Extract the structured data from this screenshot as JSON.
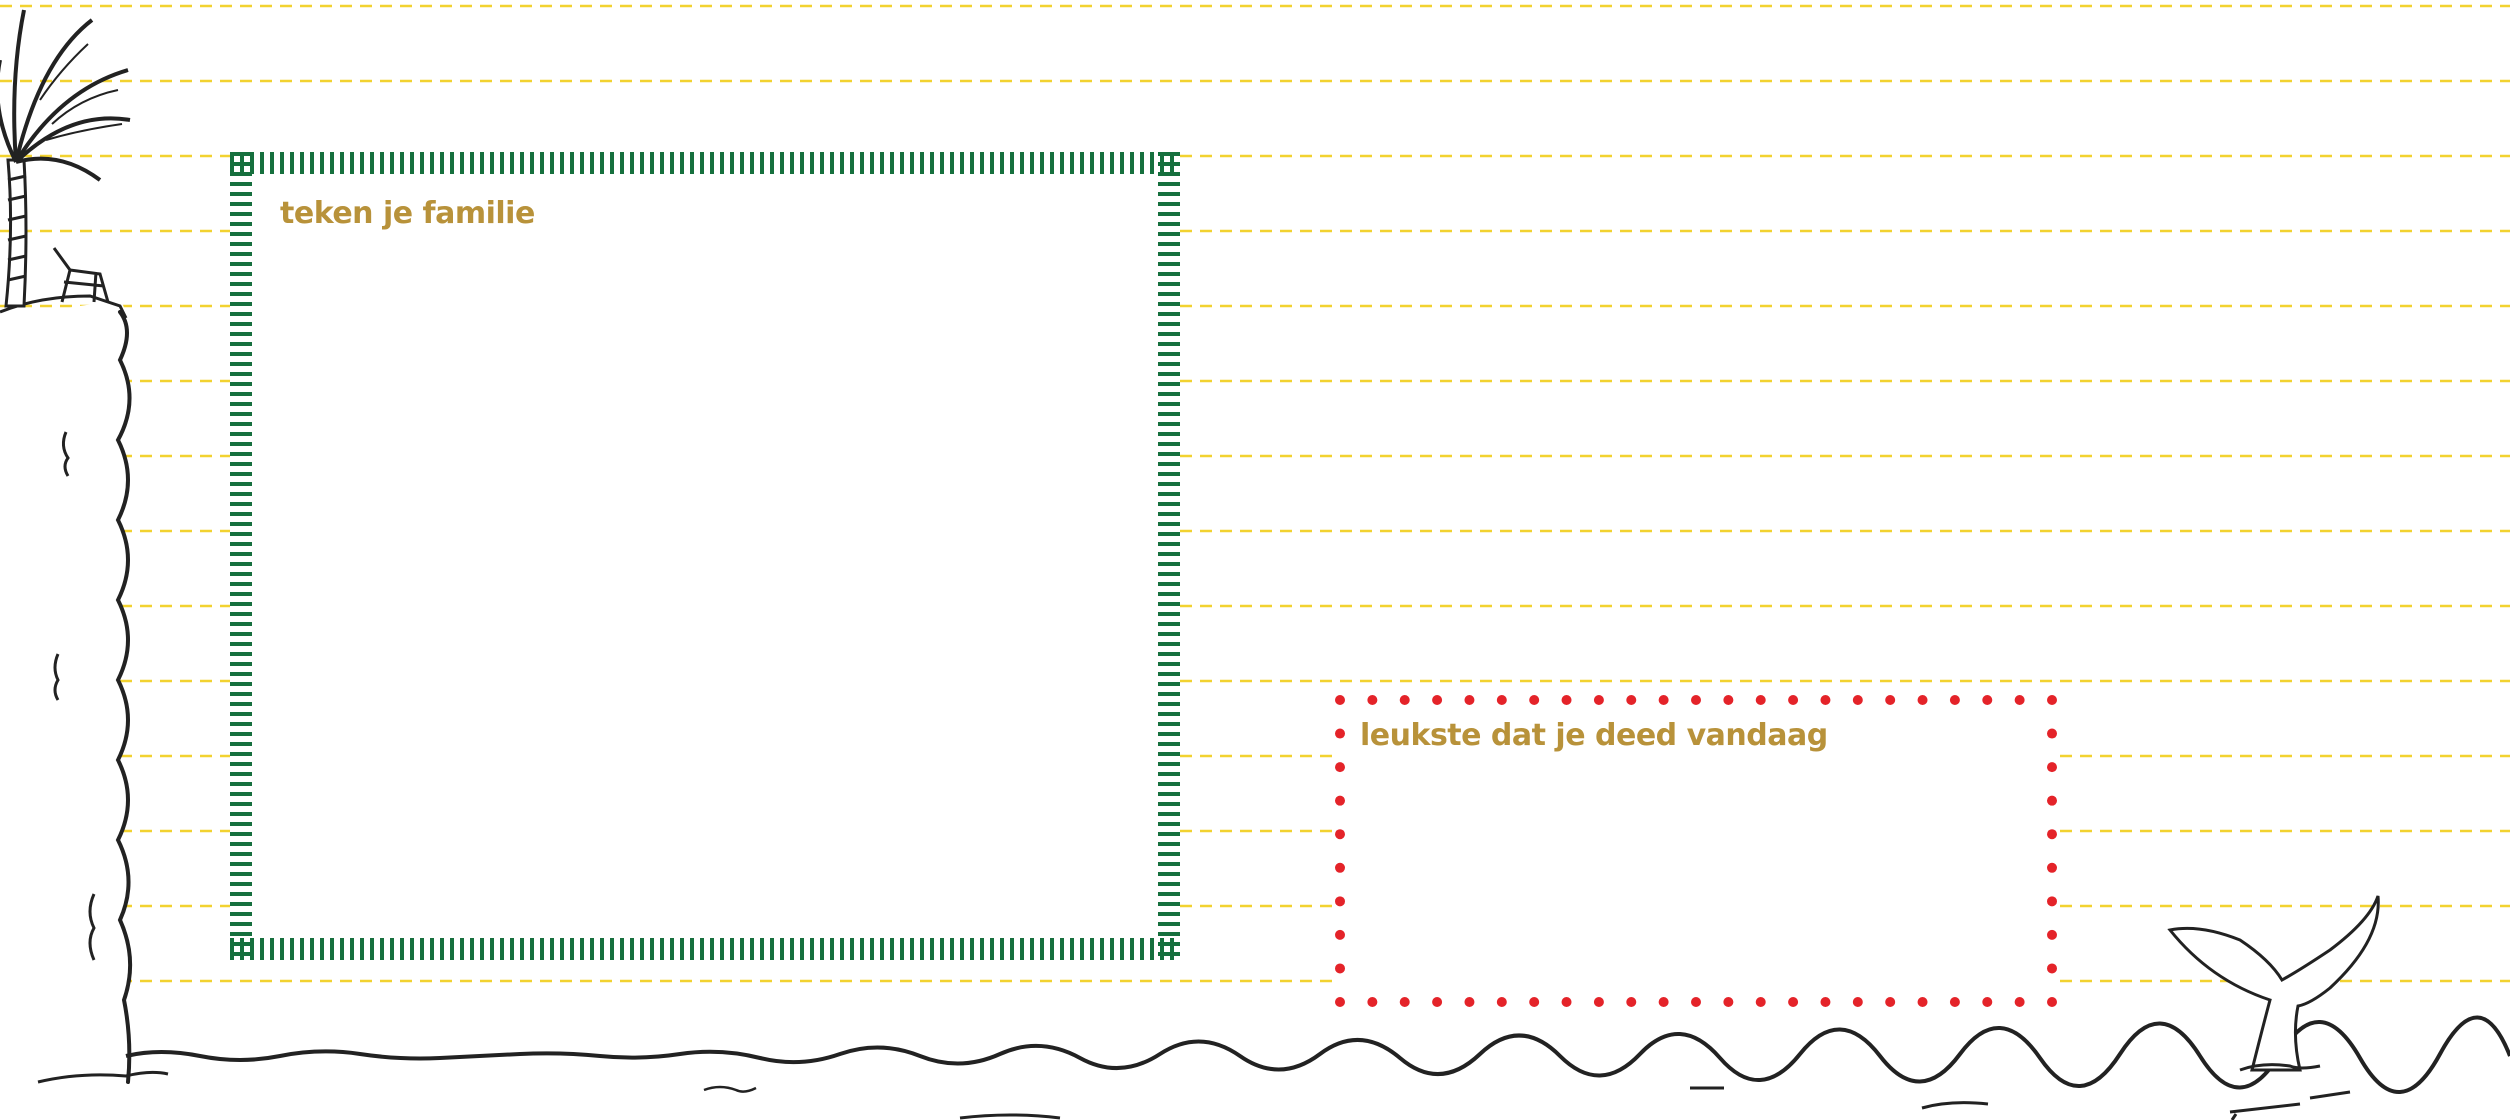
{
  "colors": {
    "label": "#B8923A",
    "ruled_line": "#F2D230",
    "family_frame": "#16703E",
    "fun_frame": "#E42329",
    "ink": "#222222",
    "background": "#FFFFFF"
  },
  "family_box": {
    "label": "teken je familie",
    "frame_style": "green-striped"
  },
  "fun_box": {
    "label": "leukste dat je deed vandaag",
    "frame_style": "red-dotted"
  },
  "decorations": {
    "palm": "palm-tree-icon",
    "cliff": "cliff-icon",
    "chair": "beach-chair-icon",
    "whale_tail": "whale-tail-icon",
    "sea": "sea-waves-icon"
  }
}
